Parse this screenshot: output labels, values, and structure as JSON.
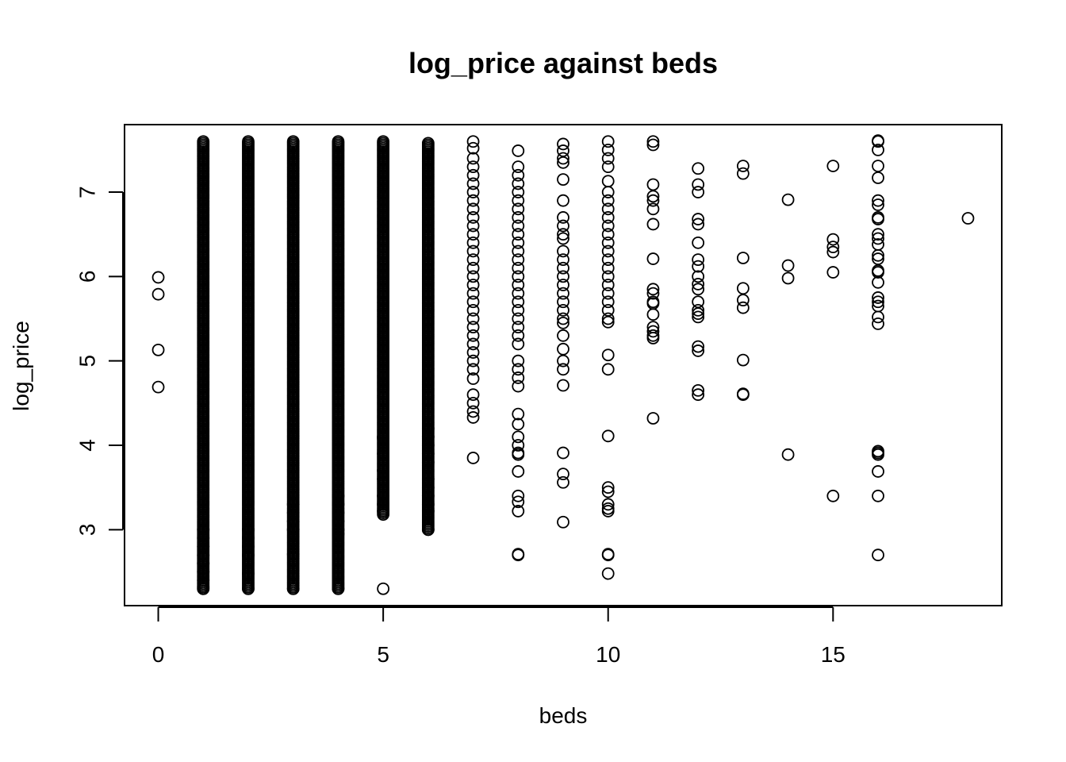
{
  "chart_data": {
    "type": "scatter",
    "title": "log_price against beds",
    "xlabel": "beds",
    "ylabel": "log_price",
    "xlim": [
      -0.75,
      18.75
    ],
    "ylim": [
      2.1,
      7.8
    ],
    "x_ticks": [
      0,
      5,
      10,
      15
    ],
    "y_ticks": [
      3,
      4,
      5,
      6,
      7
    ],
    "grid": false,
    "legend": "none",
    "marker": "open-circle",
    "colors": {
      "marker": "#000000",
      "frame": "#000000",
      "background": "#ffffff"
    },
    "columns": [
      {
        "x": 0,
        "values": [
          4.69,
          5.13,
          5.79,
          5.99
        ]
      },
      {
        "x": 1,
        "range": [
          2.3,
          7.6
        ],
        "dense": true,
        "extra": [
          2.3,
          2.32,
          2.4,
          2.5,
          2.6,
          2.7,
          2.8,
          2.9,
          3.0
        ]
      },
      {
        "x": 2,
        "range": [
          2.3,
          7.6
        ],
        "dense": true,
        "extra": [
          2.3,
          2.48,
          2.7,
          2.8,
          2.9,
          3.0
        ]
      },
      {
        "x": 3,
        "range": [
          2.3,
          7.6
        ],
        "dense": true,
        "extra": [
          2.3,
          2.71,
          3.0,
          3.1,
          3.2,
          3.3
        ]
      },
      {
        "x": 4,
        "range": [
          2.3,
          7.6
        ],
        "dense": true,
        "extra": [
          2.3,
          2.95,
          3.0,
          3.1,
          3.2,
          3.3,
          3.4
        ]
      },
      {
        "x": 5,
        "range": [
          3.2,
          7.6
        ],
        "dense": true,
        "extra": [
          2.3,
          3.18,
          3.22,
          3.3,
          3.4,
          3.6,
          3.7,
          3.9,
          4.08,
          4.1
        ]
      },
      {
        "x": 6,
        "range": [
          3.0,
          7.58
        ],
        "dense": true,
        "extra": [
          3.0,
          3.22,
          3.3,
          3.4,
          3.5,
          3.6,
          3.8,
          3.9,
          4.0,
          4.1,
          4.2
        ]
      },
      {
        "x": 7,
        "values": [
          3.85,
          4.33,
          4.4,
          4.5,
          4.6,
          4.79,
          4.9,
          5.0,
          5.1,
          5.2,
          5.3,
          5.4,
          5.5,
          5.6,
          5.7,
          5.8,
          5.9,
          6.0,
          6.1,
          6.2,
          6.3,
          6.4,
          6.5,
          6.6,
          6.7,
          6.8,
          6.9,
          7.0,
          7.1,
          7.2,
          7.3,
          7.4,
          7.52,
          7.6
        ]
      },
      {
        "x": 8,
        "values": [
          2.7,
          2.71,
          3.22,
          3.33,
          3.4,
          3.69,
          3.89,
          3.91,
          4.0,
          4.1,
          4.25,
          4.37,
          4.7,
          4.8,
          4.9,
          5.0,
          5.2,
          5.3,
          5.4,
          5.5,
          5.6,
          5.7,
          5.8,
          5.9,
          6.0,
          6.1,
          6.2,
          6.3,
          6.4,
          6.5,
          6.6,
          6.7,
          6.8,
          6.9,
          7.0,
          7.1,
          7.2,
          7.3,
          7.49
        ]
      },
      {
        "x": 9,
        "values": [
          3.09,
          3.56,
          3.66,
          3.91,
          4.71,
          4.9,
          5.0,
          5.14,
          5.3,
          5.45,
          5.5,
          5.6,
          5.7,
          5.8,
          5.9,
          6.0,
          6.1,
          6.2,
          6.3,
          6.45,
          6.5,
          6.6,
          6.7,
          6.9,
          7.15,
          7.35,
          7.4,
          7.49,
          7.57
        ]
      },
      {
        "x": 10,
        "values": [
          2.48,
          2.7,
          2.71,
          3.22,
          3.25,
          3.3,
          3.45,
          3.5,
          4.11,
          4.9,
          5.07,
          5.46,
          5.5,
          5.6,
          5.7,
          5.8,
          5.9,
          6.0,
          6.1,
          6.2,
          6.3,
          6.4,
          6.5,
          6.6,
          6.7,
          6.8,
          6.9,
          7.0,
          7.13,
          7.3,
          7.4,
          7.5,
          7.6
        ]
      },
      {
        "x": 11,
        "values": [
          4.32,
          5.27,
          5.3,
          5.35,
          5.4,
          5.55,
          5.68,
          5.7,
          5.8,
          5.85,
          6.21,
          6.62,
          6.8,
          6.9,
          6.95,
          7.09,
          7.56,
          7.6
        ]
      },
      {
        "x": 12,
        "values": [
          4.6,
          4.65,
          5.12,
          5.17,
          5.52,
          5.56,
          5.6,
          5.7,
          5.85,
          5.91,
          6.0,
          6.12,
          6.2,
          6.4,
          6.62,
          6.68,
          7.0,
          7.09,
          7.28
        ]
      },
      {
        "x": 13,
        "values": [
          4.6,
          4.61,
          5.01,
          5.63,
          5.72,
          5.86,
          6.22,
          7.22,
          7.31
        ]
      },
      {
        "x": 14,
        "values": [
          3.89,
          5.98,
          6.13,
          6.91
        ]
      },
      {
        "x": 15,
        "values": [
          3.4,
          6.05,
          6.29,
          6.35,
          6.44,
          7.31
        ]
      },
      {
        "x": 16,
        "values": [
          2.7,
          3.4,
          3.69,
          3.89,
          3.91,
          3.93,
          5.44,
          5.52,
          5.65,
          5.7,
          5.75,
          5.93,
          6.05,
          6.07,
          6.21,
          6.25,
          6.38,
          6.45,
          6.5,
          6.68,
          6.7,
          6.85,
          6.9,
          7.17,
          7.31,
          7.5,
          7.6,
          7.61
        ]
      },
      {
        "x": 18,
        "values": [
          6.69
        ]
      }
    ]
  }
}
